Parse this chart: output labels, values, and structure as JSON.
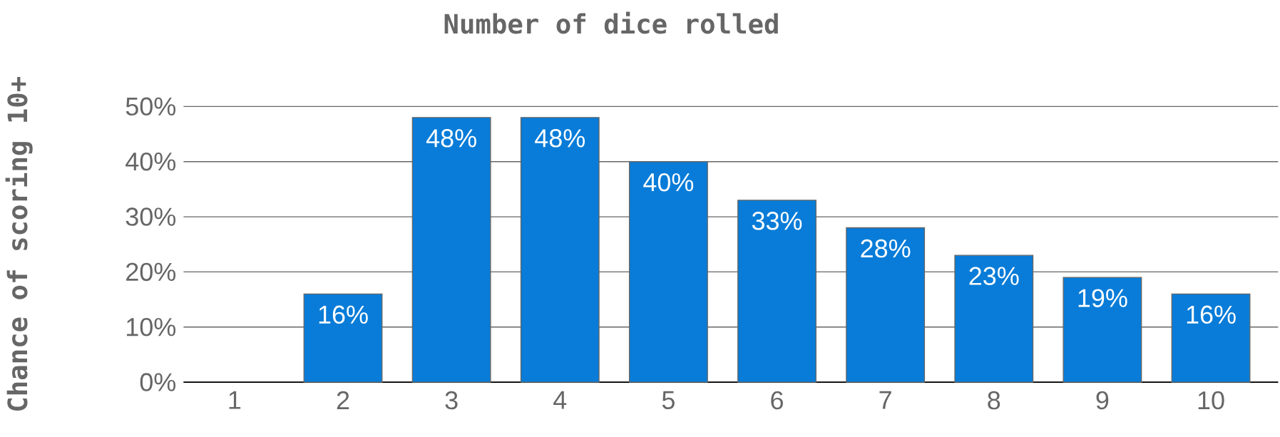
{
  "chart_data": {
    "type": "bar",
    "xlabel": "Number of dice rolled",
    "ylabel": "Chance of scoring 10+",
    "categories": [
      "1",
      "2",
      "3",
      "4",
      "5",
      "6",
      "7",
      "8",
      "9",
      "10"
    ],
    "values": [
      null,
      16,
      48,
      48,
      40,
      33,
      28,
      23,
      19,
      16
    ],
    "value_labels": [
      null,
      "16%",
      "48%",
      "48%",
      "40%",
      "33%",
      "28%",
      "23%",
      "19%",
      "16%"
    ],
    "color": "#087cd8",
    "ylim": [
      0,
      50
    ],
    "yticks": [
      {
        "value": 0,
        "label": "0%"
      },
      {
        "value": 10,
        "label": "10%"
      },
      {
        "value": 20,
        "label": "20%"
      },
      {
        "value": 30,
        "label": "30%"
      },
      {
        "value": 40,
        "label": "40%"
      },
      {
        "value": 50,
        "label": "50%"
      }
    ],
    "grid": "y"
  }
}
